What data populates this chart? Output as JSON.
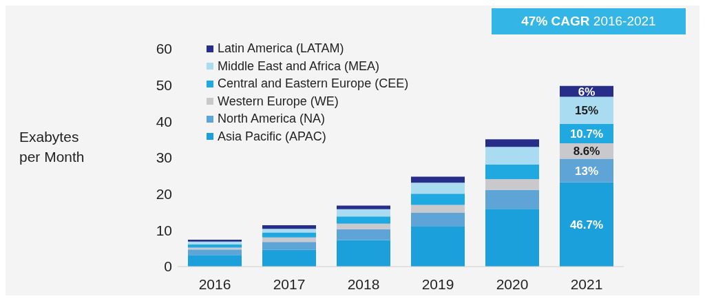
{
  "chart_data": {
    "type": "bar",
    "stacked": true,
    "ylabel": "Exabytes per Month",
    "categories": [
      "2016",
      "2017",
      "2018",
      "2019",
      "2020",
      "2021"
    ],
    "series": [
      {
        "name": "Asia Pacific (APAC)",
        "color": "#1ca0dc",
        "values": [
          3.2,
          4.6,
          7.3,
          11.0,
          15.9,
          23.2
        ]
      },
      {
        "name": "North America (NA)",
        "color": "#5ea4d6",
        "values": [
          1.5,
          2.2,
          3.0,
          3.8,
          5.2,
          6.5
        ]
      },
      {
        "name": "Western Europe (WE)",
        "color": "#c9c9cd",
        "values": [
          0.5,
          1.2,
          1.5,
          2.2,
          3.0,
          4.3
        ]
      },
      {
        "name": "Central and Eastern Europe (CEE)",
        "color": "#20a8e0",
        "values": [
          0.9,
          1.4,
          2.0,
          3.1,
          4.0,
          5.3
        ]
      },
      {
        "name": "Middle East and Africa (MEA)",
        "color": "#a9dcf0",
        "values": [
          0.8,
          1.0,
          2.0,
          3.0,
          4.9,
          7.5
        ]
      },
      {
        "name": "Latin America (LATAM)",
        "color": "#262e8a",
        "values": [
          0.5,
          1.0,
          1.0,
          1.7,
          2.1,
          3.0
        ]
      }
    ],
    "ylim": [
      0,
      60
    ],
    "yticks": [
      0,
      10,
      20,
      30,
      40,
      50,
      60
    ],
    "grid": false,
    "legend": "top left",
    "annotations": [
      "47% CAGR 2016-2021",
      "46.7%",
      "13%",
      "8.6%",
      "10.7%",
      "15%",
      "6%"
    ]
  }
}
